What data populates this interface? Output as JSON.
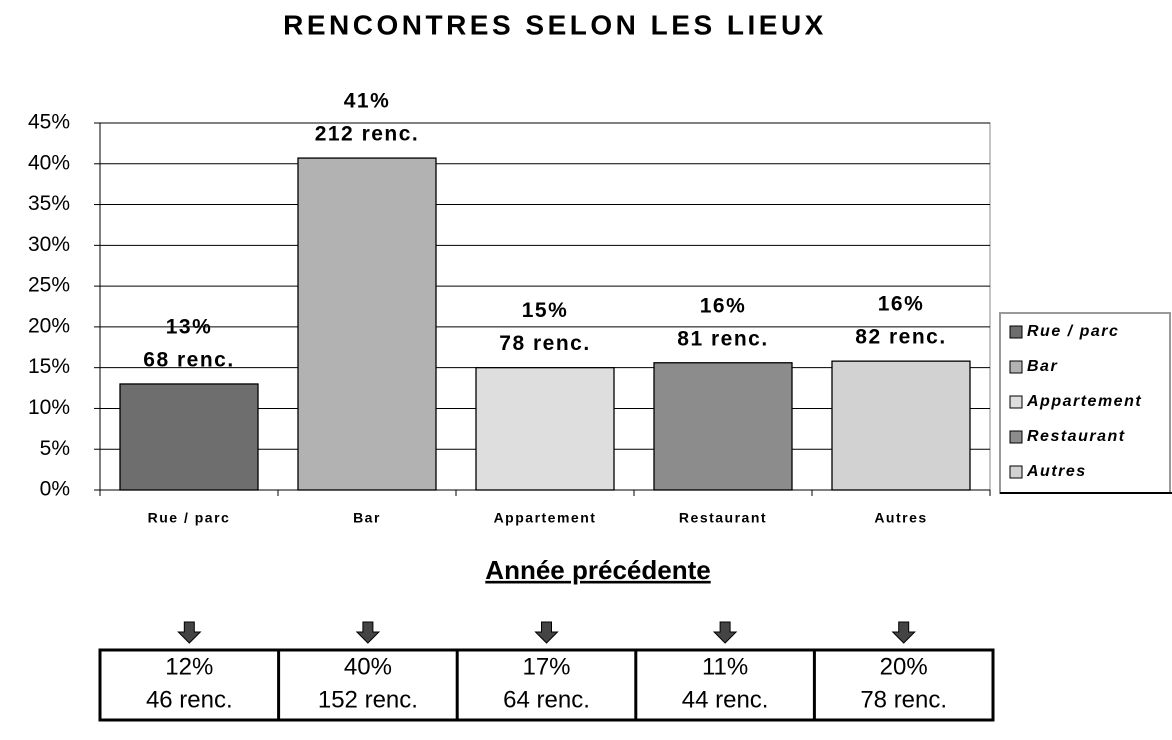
{
  "chart_data": {
    "type": "bar",
    "title": "RENCONTRES SELON LES LIEUX",
    "categories": [
      "Rue / parc",
      "Bar",
      "Appartement",
      "Restaurant",
      "Autres"
    ],
    "values": [
      13,
      40.7,
      15,
      15.6,
      15.8
    ],
    "value_labels": [
      "13%",
      "41%",
      "15%",
      "16%",
      "16%"
    ],
    "count_labels": [
      "68 renc.",
      "212 renc.",
      "78 renc.",
      "81 renc.",
      "82 renc."
    ],
    "colors": [
      "#6e6e6e",
      "#b2b2b2",
      "#dedede",
      "#8c8c8c",
      "#d2d2d2"
    ],
    "ylim": [
      0,
      45
    ],
    "yticks": [
      {
        "value": 0,
        "label": "0%"
      },
      {
        "value": 5,
        "label": "5%"
      },
      {
        "value": 10,
        "label": "10%"
      },
      {
        "value": 15,
        "label": "15%"
      },
      {
        "value": 20,
        "label": "20%"
      },
      {
        "value": 25,
        "label": "25%"
      },
      {
        "value": 30,
        "label": "30%"
      },
      {
        "value": 35,
        "label": "35%"
      },
      {
        "value": 40,
        "label": "40%"
      },
      {
        "value": 45,
        "label": "45%"
      }
    ],
    "grid": true,
    "legend": "right"
  },
  "previous_year": {
    "title": "Année précédente",
    "rows": [
      [
        "12%",
        "46 renc."
      ],
      [
        "40%",
        "152 renc."
      ],
      [
        "17%",
        "64 renc."
      ],
      [
        "11%",
        "44 renc."
      ],
      [
        "20%",
        "78 renc."
      ]
    ]
  }
}
